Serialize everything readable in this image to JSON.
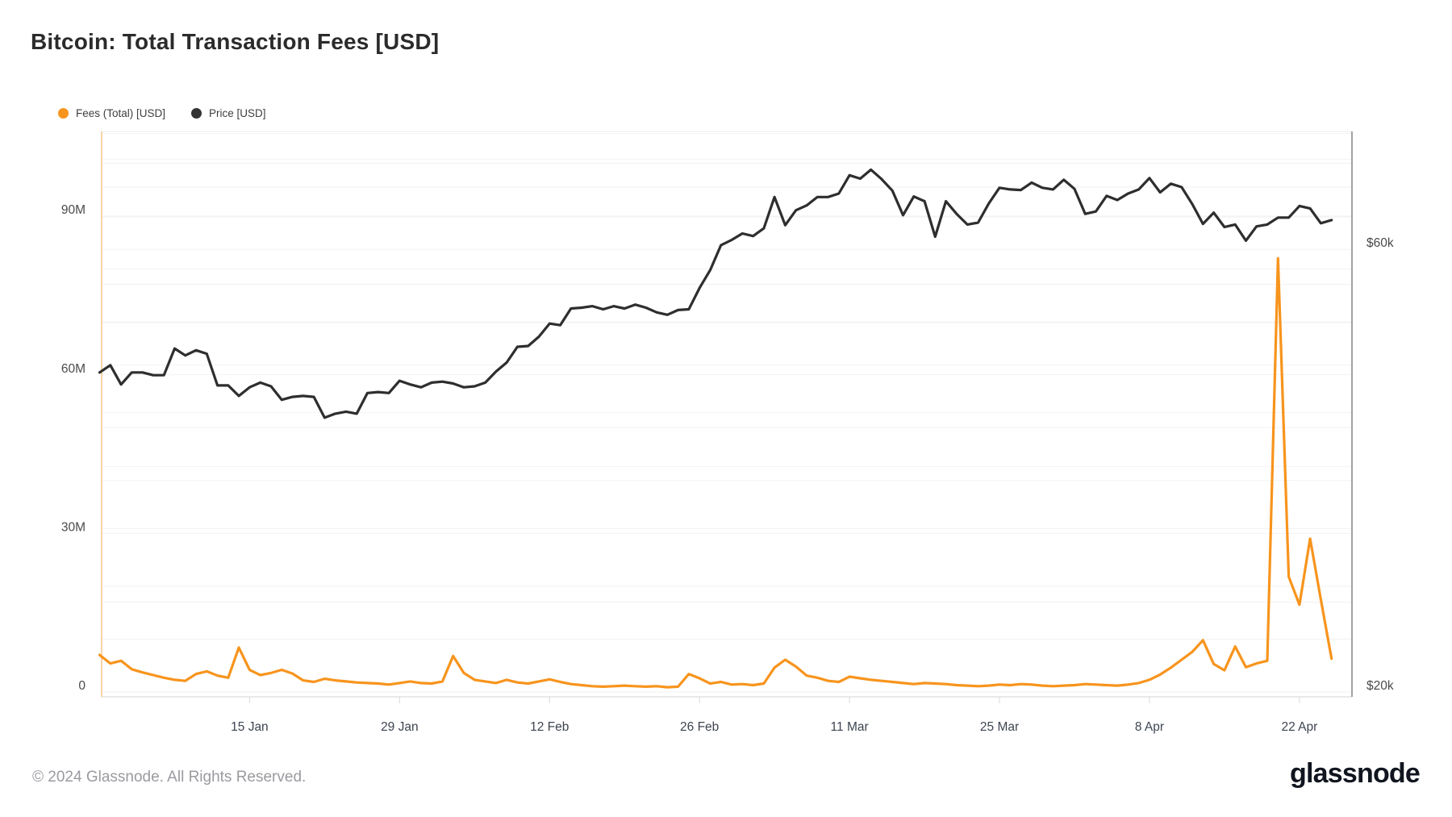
{
  "title": "Bitcoin: Total Transaction Fees [USD]",
  "legend": [
    {
      "label": "Fees (Total) [USD]",
      "color": "#F7941D"
    },
    {
      "label": "Price [USD]",
      "color": "#333333"
    }
  ],
  "footer": {
    "copyright": "© 2024 Glassnode. All Rights Reserved.",
    "brand": "glassnode"
  },
  "colors": {
    "fees_line": "#F7941D",
    "price_line": "#2e2e2e",
    "left_axis_line": "#f8c98f",
    "right_axis_line": "#8c8c8c",
    "bottom_axis_line": "#e2e2e2",
    "gridline": "#f2f2f2",
    "tick_label": "#4a4a4a",
    "x_tick_label": "#3d4451"
  },
  "chart_data": {
    "type": "line",
    "title": "Bitcoin: Total Transaction Fees [USD]",
    "x_start": "2024-01-01",
    "x_end": "2024-04-25",
    "frequency": "daily",
    "grid": "on",
    "legend_position": "top-left",
    "x_axis": {
      "ticks": [
        {
          "label": "15 Jan",
          "day": 14
        },
        {
          "label": "29 Jan",
          "day": 28
        },
        {
          "label": "12 Feb",
          "day": 42
        },
        {
          "label": "26 Feb",
          "day": 56
        },
        {
          "label": "11 Mar",
          "day": 70
        },
        {
          "label": "25 Mar",
          "day": 84
        },
        {
          "label": "8 Apr",
          "day": 98
        },
        {
          "label": "22 Apr",
          "day": 112
        }
      ]
    },
    "left_axis": {
      "series": "Fees (Total) [USD]",
      "scale": "linear",
      "unit": "USD millions",
      "range_millions": [
        0,
        105
      ],
      "ticks": [
        {
          "label": "90M",
          "value": 90
        },
        {
          "label": "60M",
          "value": 60
        },
        {
          "label": "30M",
          "value": 30
        },
        {
          "label": "0",
          "value": 0
        }
      ],
      "grid_step_millions": 10,
      "grid_max_millions": 100
    },
    "right_axis": {
      "series": "Price [USD]",
      "scale": "log",
      "unit": "USD thousands",
      "ticks": [
        {
          "label": "$60k",
          "value": 60
        },
        {
          "label": "$20k",
          "value": 20
        }
      ],
      "grid_values_thousands": [
        25,
        30,
        35,
        40,
        45,
        50,
        55,
        60,
        65,
        70,
        75,
        80
      ]
    },
    "series": [
      {
        "name": "Fees (Total) [USD]",
        "axis": "left",
        "color": "#F7941D",
        "unit": "USD millions",
        "values": [
          7.0,
          5.4,
          5.9,
          4.3,
          3.7,
          3.2,
          2.7,
          2.3,
          2.1,
          3.4,
          3.9,
          3.1,
          2.7,
          8.4,
          4.2,
          3.2,
          3.6,
          4.2,
          3.5,
          2.2,
          1.9,
          2.5,
          2.2,
          2.0,
          1.8,
          1.7,
          1.6,
          1.4,
          1.7,
          2.0,
          1.7,
          1.6,
          2.0,
          6.8,
          3.6,
          2.3,
          2.0,
          1.7,
          2.3,
          1.8,
          1.6,
          2.0,
          2.4,
          1.9,
          1.5,
          1.3,
          1.1,
          1.0,
          1.1,
          1.2,
          1.1,
          1.0,
          1.1,
          0.9,
          1.0,
          3.4,
          2.6,
          1.6,
          1.9,
          1.4,
          1.5,
          1.3,
          1.6,
          4.6,
          6.1,
          4.8,
          3.1,
          2.7,
          2.1,
          1.9,
          2.9,
          2.6,
          2.3,
          2.1,
          1.9,
          1.7,
          1.5,
          1.7,
          1.6,
          1.5,
          1.3,
          1.2,
          1.1,
          1.2,
          1.4,
          1.3,
          1.5,
          1.4,
          1.2,
          1.1,
          1.2,
          1.3,
          1.5,
          1.4,
          1.3,
          1.2,
          1.4,
          1.7,
          2.3,
          3.3,
          4.6,
          6.1,
          7.6,
          9.8,
          5.3,
          4.1,
          8.6,
          4.7,
          5.4,
          5.9,
          82.0,
          21.8,
          16.5,
          29.0,
          17.5,
          6.3
        ]
      },
      {
        "name": "Price [USD]",
        "axis": "right",
        "color": "#2e2e2e",
        "unit": "USD thousands",
        "values": [
          44.2,
          45.0,
          42.9,
          44.2,
          44.2,
          43.9,
          43.9,
          46.9,
          46.1,
          46.7,
          46.3,
          42.8,
          42.8,
          41.7,
          42.6,
          43.1,
          42.7,
          41.3,
          41.6,
          41.7,
          41.6,
          39.5,
          39.9,
          40.1,
          39.9,
          42.0,
          42.1,
          42.0,
          43.3,
          42.9,
          42.6,
          43.1,
          43.2,
          43.0,
          42.6,
          42.7,
          43.1,
          44.3,
          45.3,
          47.1,
          47.2,
          48.3,
          49.9,
          49.7,
          51.8,
          51.9,
          52.1,
          51.7,
          52.1,
          51.8,
          52.3,
          51.9,
          51.3,
          51.0,
          51.6,
          51.7,
          54.5,
          57.0,
          60.6,
          61.4,
          62.4,
          62.0,
          63.2,
          68.3,
          63.7,
          66.1,
          66.9,
          68.3,
          68.3,
          68.9,
          72.1,
          71.5,
          73.1,
          71.4,
          69.4,
          65.3,
          68.4,
          67.6,
          61.9,
          67.6,
          65.5,
          63.8,
          64.1,
          67.2,
          69.9,
          69.6,
          69.5,
          70.8,
          69.9,
          69.6,
          71.3,
          69.7,
          65.5,
          65.9,
          68.5,
          67.8,
          68.9,
          69.6,
          71.6,
          69.1,
          70.6,
          70.0,
          67.1,
          63.9,
          65.7,
          63.4,
          63.8,
          61.3,
          63.5,
          63.8,
          64.9,
          64.9,
          66.8,
          66.4,
          64.0,
          64.5
        ]
      }
    ]
  }
}
